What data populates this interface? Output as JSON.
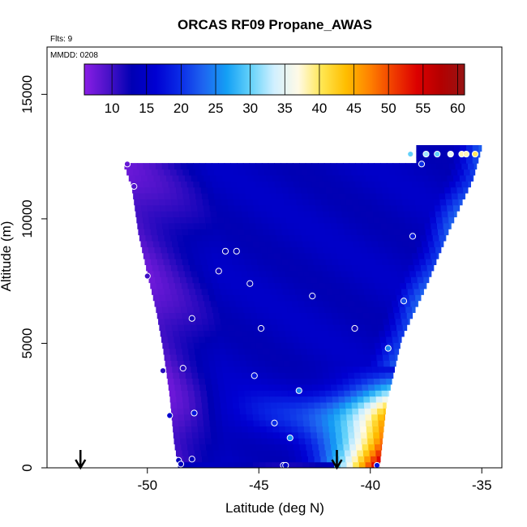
{
  "chart_data": {
    "type": "heatmap",
    "title": "ORCAS RF09 Propane_AWAS",
    "flights_label": "Flts: 9",
    "date_label": "MMDD: 0208",
    "xlabel": "Latitude (deg N)",
    "ylabel": "Altitude (m)",
    "xlim": [
      -54.5,
      -34.1
    ],
    "ylim": [
      0,
      16900
    ],
    "x_ticks": [
      -50,
      -45,
      -40,
      -35
    ],
    "y_ticks": [
      0,
      5000,
      10000,
      15000
    ],
    "grid": false,
    "colorbar": {
      "position": "top-inset",
      "range": [
        6,
        61
      ],
      "ticks": [
        10,
        15,
        20,
        25,
        30,
        35,
        40,
        45,
        50,
        55,
        60
      ],
      "palette": [
        "#8a1ee6",
        "#4a12c8",
        "#0000b4",
        "#0000d2",
        "#0a2ae6",
        "#1e64f0",
        "#14a0f5",
        "#64d2fa",
        "#d2f0ff",
        "#fffae6",
        "#ffe650",
        "#ffbe00",
        "#ff8200",
        "#f03c00",
        "#dc0000",
        "#b40000",
        "#961414"
      ]
    },
    "field": {
      "top_edge": [
        [
          -51.1,
          12300
        ],
        [
          -38.0,
          12300
        ],
        [
          -38.0,
          12900
        ],
        [
          -35.0,
          12900
        ]
      ],
      "left_edge": [
        [
          -51.1,
          12300
        ],
        [
          -50.7,
          11300
        ],
        [
          -50.4,
          9400
        ],
        [
          -50.0,
          7800
        ],
        [
          -49.6,
          6300
        ],
        [
          -49.3,
          4800
        ],
        [
          -49.0,
          2900
        ],
        [
          -48.8,
          1000
        ],
        [
          -48.6,
          0
        ]
      ],
      "right_edge": [
        [
          -35.0,
          12900
        ],
        [
          -35.4,
          11600
        ],
        [
          -36.5,
          9500
        ],
        [
          -37.5,
          7300
        ],
        [
          -38.6,
          5200
        ],
        [
          -39.3,
          2500
        ],
        [
          -39.6,
          0
        ]
      ],
      "description_levels": {
        "upper_background": 14,
        "plume_peak": 58
      }
    },
    "points": [
      {
        "lat": -50.9,
        "alt": 12200,
        "value": 8
      },
      {
        "lat": -50.6,
        "alt": 11300,
        "value": 9
      },
      {
        "lat": -50.0,
        "alt": 7700,
        "value": 10
      },
      {
        "lat": -48.0,
        "alt": 6000,
        "value": 12
      },
      {
        "lat": -46.0,
        "alt": 8700,
        "value": 13
      },
      {
        "lat": -46.5,
        "alt": 8700,
        "value": 13
      },
      {
        "lat": -46.8,
        "alt": 7900,
        "value": 12
      },
      {
        "lat": -45.4,
        "alt": 7400,
        "value": 13
      },
      {
        "lat": -42.6,
        "alt": 6900,
        "value": 14
      },
      {
        "lat": -44.9,
        "alt": 5600,
        "value": 14
      },
      {
        "lat": -40.7,
        "alt": 5600,
        "value": 12
      },
      {
        "lat": -48.4,
        "alt": 4000,
        "value": 11
      },
      {
        "lat": -49.3,
        "alt": 3900,
        "value": 11
      },
      {
        "lat": -45.2,
        "alt": 3700,
        "value": 18
      },
      {
        "lat": -43.2,
        "alt": 3100,
        "value": 25
      },
      {
        "lat": -47.9,
        "alt": 2200,
        "value": 18
      },
      {
        "lat": -49.0,
        "alt": 2100,
        "value": 16
      },
      {
        "lat": -44.3,
        "alt": 1800,
        "value": 20
      },
      {
        "lat": -43.6,
        "alt": 1200,
        "value": 26
      },
      {
        "lat": -48.0,
        "alt": 350,
        "value": 14
      },
      {
        "lat": -48.6,
        "alt": 300,
        "value": 14
      },
      {
        "lat": -48.5,
        "alt": 150,
        "value": 14
      },
      {
        "lat": -43.9,
        "alt": 100,
        "value": 15
      },
      {
        "lat": -43.8,
        "alt": 100,
        "value": 15
      },
      {
        "lat": -39.7,
        "alt": 100,
        "value": 18
      },
      {
        "lat": -39.2,
        "alt": 4800,
        "value": 25
      },
      {
        "lat": -38.5,
        "alt": 6700,
        "value": 22
      },
      {
        "lat": -38.1,
        "alt": 9300,
        "value": 18
      },
      {
        "lat": -37.7,
        "alt": 12200,
        "value": 20
      },
      {
        "lat": -38.2,
        "alt": 12600,
        "value": 30
      },
      {
        "lat": -37.5,
        "alt": 12600,
        "value": 32
      },
      {
        "lat": -37.0,
        "alt": 12600,
        "value": 30
      },
      {
        "lat": -36.4,
        "alt": 12600,
        "value": 35
      },
      {
        "lat": -35.9,
        "alt": 12600,
        "value": 38
      },
      {
        "lat": -35.7,
        "alt": 12600,
        "value": 38
      },
      {
        "lat": -35.3,
        "alt": 12600,
        "value": 40
      }
    ],
    "markers": [
      {
        "type": "arrow-down",
        "lat": -53.0
      },
      {
        "type": "arrow-down",
        "lat": -41.5
      }
    ]
  }
}
